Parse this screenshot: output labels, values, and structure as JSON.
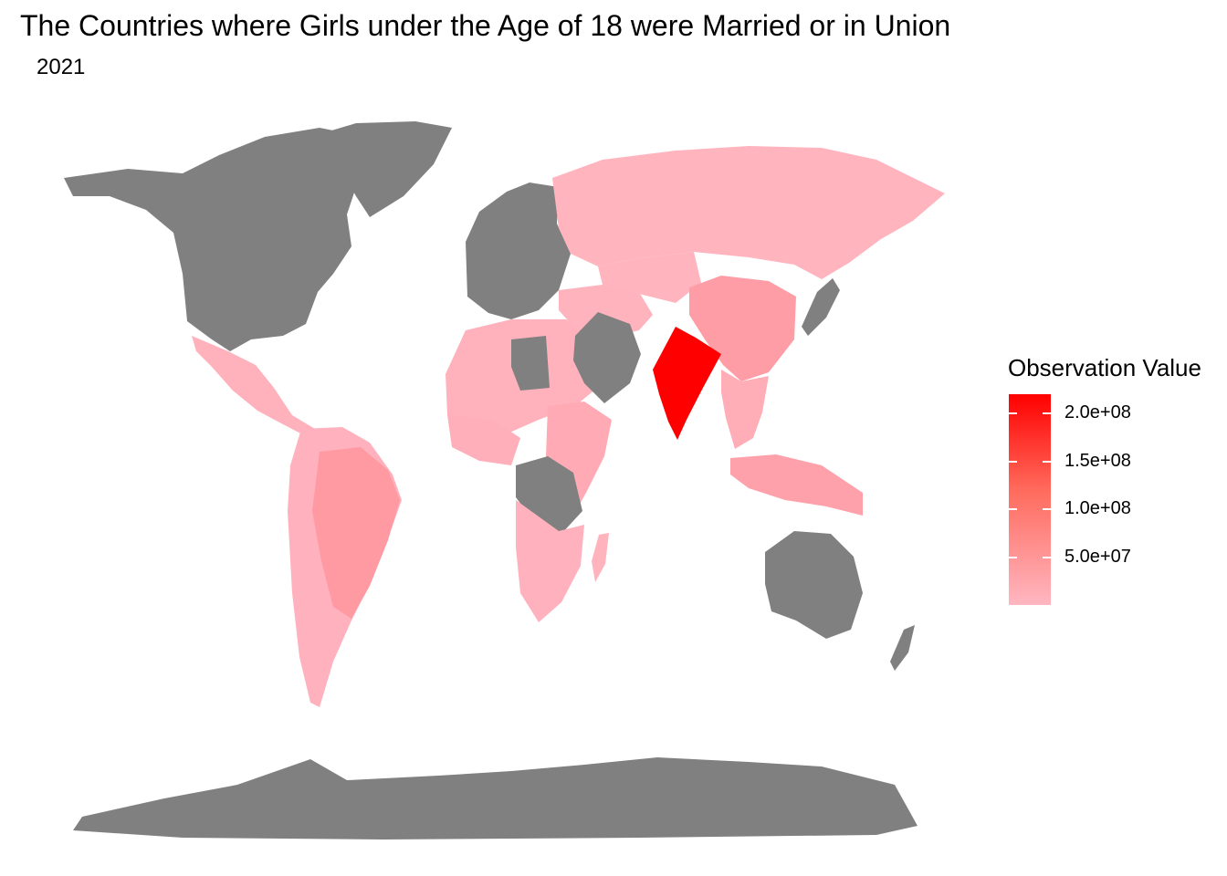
{
  "title": "The Countries where Girls under the Age of 18 were Married or in Union",
  "subtitle": "2021",
  "colors": {
    "no_data": "#808080",
    "scale_low": "#ffb6c1",
    "scale_high": "#ff0000",
    "background": "#ffffff"
  },
  "legend": {
    "title": "Observation Value",
    "breaks": [
      {
        "value": 200000000,
        "label": "2.0e+08"
      },
      {
        "value": 150000000,
        "label": "1.5e+08"
      },
      {
        "value": 100000000,
        "label": "1.0e+08"
      },
      {
        "value": 50000000,
        "label": "5.0e+07"
      }
    ],
    "min": 0,
    "max": 220000000
  },
  "regions": [
    {
      "name": "North America",
      "value": null
    },
    {
      "name": "Greenland",
      "value": null
    },
    {
      "name": "Europe",
      "value": null
    },
    {
      "name": "Russia",
      "value": 3000000
    },
    {
      "name": "Mexico and Central America",
      "value": 6000000
    },
    {
      "name": "Brazil",
      "value": 35000000
    },
    {
      "name": "South America",
      "value": 5000000
    },
    {
      "name": "North Africa",
      "value": 6000000
    },
    {
      "name": "West Africa",
      "value": 8000000
    },
    {
      "name": "East Africa",
      "value": 15000000
    },
    {
      "name": "Southern Africa",
      "value": 5000000
    },
    {
      "name": "Central Africa",
      "value": null
    },
    {
      "name": "Libya",
      "value": null
    },
    {
      "name": "Arabian Peninsula",
      "value": null
    },
    {
      "name": "Middle East",
      "value": 4000000
    },
    {
      "name": "Central Asia",
      "value": 3000000
    },
    {
      "name": "China",
      "value": 30000000
    },
    {
      "name": "India",
      "value": 220000000
    },
    {
      "name": "Southeast Asia",
      "value": 10000000
    },
    {
      "name": "Indonesia",
      "value": 25000000
    },
    {
      "name": "Japan",
      "value": null
    },
    {
      "name": "Australia",
      "value": null
    },
    {
      "name": "New Zealand",
      "value": null
    },
    {
      "name": "Madagascar",
      "value": 4000000
    },
    {
      "name": "Antarctica",
      "value": null
    }
  ]
}
